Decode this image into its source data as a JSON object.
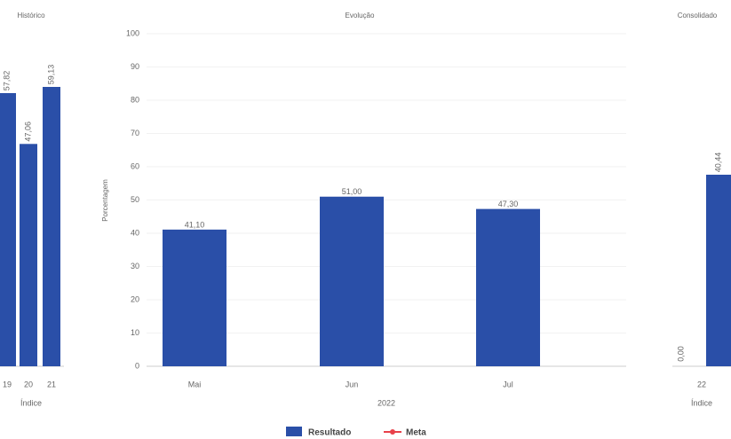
{
  "chart_data": [
    {
      "type": "bar",
      "title": "Histórico",
      "x_label": "Índice",
      "categories": [
        "19",
        "20",
        "21"
      ],
      "values": [
        57.82,
        47.06,
        59.13
      ],
      "value_labels": [
        "57,82",
        "47,06",
        "59,13"
      ],
      "color": "#2a4fa8"
    },
    {
      "type": "bar",
      "title": "Evolução",
      "x_label": "2022",
      "y_label": "Porcentagem",
      "categories": [
        "Mai",
        "Jun",
        "Jul"
      ],
      "series": [
        {
          "name": "Resultado",
          "color": "#2a4fa8",
          "values": [
            41.1,
            51.0,
            47.3
          ],
          "value_labels": [
            "41,10",
            "51,00",
            "47,30"
          ]
        },
        {
          "name": "Meta",
          "color": "#e8414a",
          "values": [
            null,
            null,
            null
          ]
        }
      ],
      "ylim": [
        0,
        100
      ],
      "yticks": [
        0,
        10,
        20,
        30,
        40,
        50,
        60,
        70,
        80,
        90,
        100
      ],
      "grid": true,
      "legend": "bottom"
    },
    {
      "type": "bar",
      "title": "Consolidado",
      "x_label": "Índice",
      "categories": [
        "22",
        null
      ],
      "values": [
        0.0,
        40.44
      ],
      "value_labels": [
        "0,00",
        "40,44"
      ],
      "color": "#2a4fa8"
    }
  ]
}
